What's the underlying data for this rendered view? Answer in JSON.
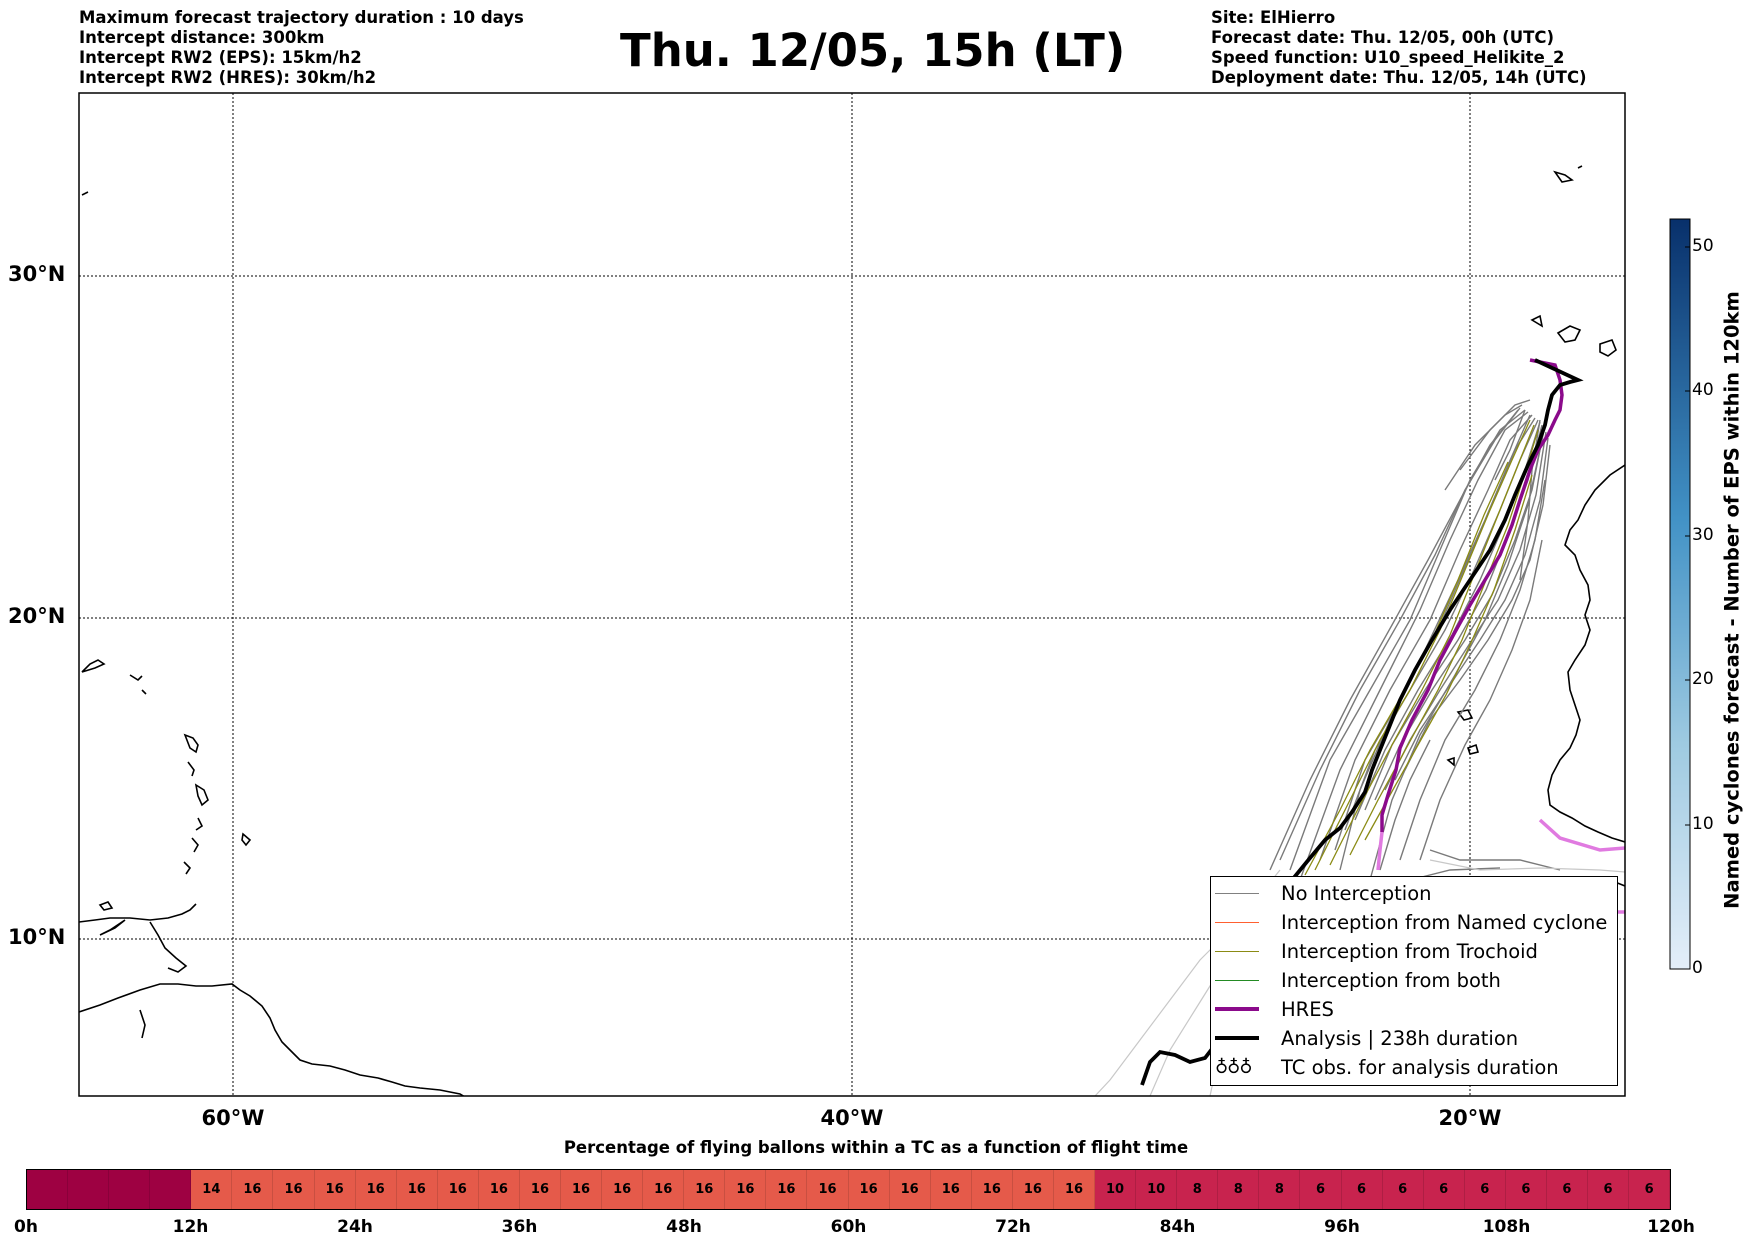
{
  "header": {
    "left": [
      "Maximum forecast trajectory duration : 10 days",
      "Intercept distance: 300km",
      "Intercept RW2 (EPS):  15km/h2",
      "Intercept RW2 (HRES): 30km/h2"
    ],
    "title": "Thu. 12/05, 15h (LT)",
    "right": [
      "Site: ElHierro",
      "Forecast date: Thu. 12/05, 00h (UTC)",
      "Speed function: U10_speed_Helikite_2",
      "Deployment date: Thu. 12/05, 14h (UTC)"
    ]
  },
  "map": {
    "lat_labels": [
      "30°N",
      "20°N",
      "10°N"
    ],
    "lon_labels": [
      "60°W",
      "40°W",
      "20°W"
    ]
  },
  "legend": [
    {
      "label": "No Interception",
      "color": "#808080"
    },
    {
      "label": "Interception from Named cyclone",
      "color": "#ff6030"
    },
    {
      "label": "Interception from Trochoid",
      "color": "#8b8b14"
    },
    {
      "label": "Interception from both",
      "color": "#238b23"
    },
    {
      "label": "HRES",
      "color": "#8b0a8b"
    },
    {
      "label": "Analysis | 238h duration",
      "color": "#000000"
    },
    {
      "label": "TC obs. for analysis duration",
      "color": "#000000"
    }
  ],
  "colorbar": {
    "title": "Named cyclones forecast - Number of EPS within 120km",
    "ticks": [
      "0",
      "10",
      "20",
      "30",
      "40",
      "50"
    ],
    "color_low": "#e4eef9",
    "color_high": "#08306b"
  },
  "percentage_bar": {
    "title": "Percentage of flying ballons within a TC as a function of flight time",
    "cells": [
      "",
      "",
      "",
      "",
      "14",
      "16",
      "16",
      "16",
      "16",
      "16",
      "16",
      "16",
      "16",
      "16",
      "16",
      "16",
      "16",
      "16",
      "16",
      "16",
      "16",
      "16",
      "16",
      "16",
      "16",
      "16",
      "10",
      "10",
      "8",
      "8",
      "8",
      "6",
      "6",
      "6",
      "6",
      "6",
      "6",
      "6",
      "6",
      "6"
    ],
    "ticks": [
      "0h",
      "12h",
      "24h",
      "36h",
      "48h",
      "60h",
      "72h",
      "84h",
      "96h",
      "108h",
      "120h"
    ],
    "colors": {
      "high": "#9e0142",
      "mid": "#e55a4a",
      "low": "#c8234e"
    }
  }
}
